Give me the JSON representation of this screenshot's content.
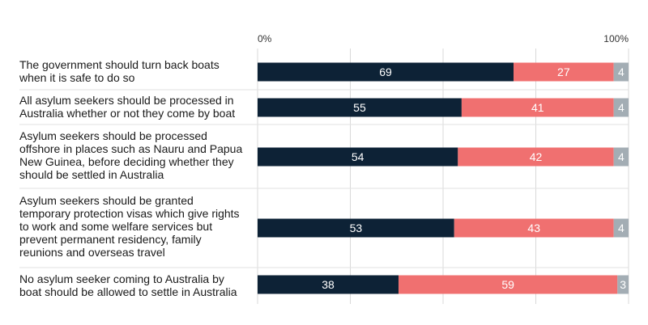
{
  "chart_data": {
    "type": "bar",
    "orientation": "horizontal",
    "stacked": true,
    "xlim": [
      0,
      100
    ],
    "x_ticks": [
      "0%",
      "",
      "",
      "",
      "100%"
    ],
    "categories": [
      "The government should turn back boats when it is safe to do so",
      "All asylum seekers should be processed in Australia whether or not they come by boat",
      "Asylum seekers should be processed offshore in places such as Nauru and Papua New Guinea, before deciding whether they should be settled in Australia",
      "Asylum seekers should be granted temporary protection visas which give rights to work and some welfare services but prevent permanent residency, family reunions and overseas travel",
      "No asylum seeker coming to Australia by boat should be allowed to settle in Australia"
    ],
    "category_lines": [
      [
        "The government should turn back boats",
        "when it is safe to do so"
      ],
      [
        "All asylum seekers should be processed in",
        "Australia whether or not they come by boat"
      ],
      [
        "Asylum seekers should be processed",
        "offshore in places such as Nauru and Papua",
        "New Guinea, before deciding whether they",
        "should be settled in Australia"
      ],
      [
        "Asylum seekers should be granted",
        "temporary protection visas which give rights",
        "to work and some welfare services but",
        "prevent permanent residency, family",
        "reunions and overseas travel"
      ],
      [
        "No asylum seeker coming to Australia by",
        "boat should be allowed to settle in Australia"
      ]
    ],
    "series": [
      {
        "color": "#0d2236",
        "label_color": "#ffffff",
        "values": [
          69,
          55,
          54,
          53,
          38
        ]
      },
      {
        "color": "#f07070",
        "label_color": "#ffffff",
        "values": [
          27,
          41,
          42,
          43,
          59
        ]
      },
      {
        "color": "#a3adb4",
        "label_color": "#ffffff",
        "values": [
          4,
          4,
          4,
          4,
          3
        ]
      }
    ],
    "gridlines": true,
    "legend": "none"
  }
}
